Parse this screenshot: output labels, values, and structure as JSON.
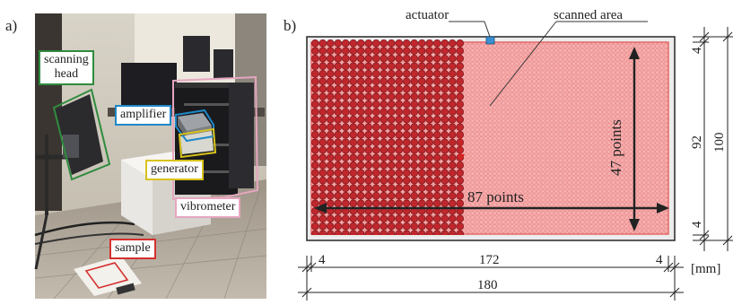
{
  "panel_a": {
    "tag": "a)",
    "labels": {
      "scanning_head": "scanning\nhead",
      "amplifier": "amplifier",
      "generator": "generator",
      "vibrometer": "vibrometer",
      "sample": "sample"
    },
    "label_colors": {
      "scanning_head": "#2e8b3e",
      "amplifier": "#1e88c8",
      "generator": "#d8c21a",
      "vibrometer": "#e6a6c0",
      "sample": "#d43030"
    }
  },
  "panel_b": {
    "tag": "b)",
    "actuator_label": "actuator",
    "scanned_area_label": "scanned area",
    "points_x_label": "87 points",
    "points_y_label": "47 points",
    "dims": {
      "left_margin": "4",
      "scan_width": "172",
      "right_margin": "4",
      "total_width": "180",
      "top_margin": "4",
      "scan_height": "92",
      "bottom_margin": "4",
      "total_height": "100",
      "unit": "[mm]"
    },
    "colors": {
      "scanned_fill": "#f28c8c",
      "points_dark": "#c0272d",
      "points_light": "#f7a9a9",
      "actuator": "#3a8fd0",
      "plate_border": "#333333"
    }
  }
}
